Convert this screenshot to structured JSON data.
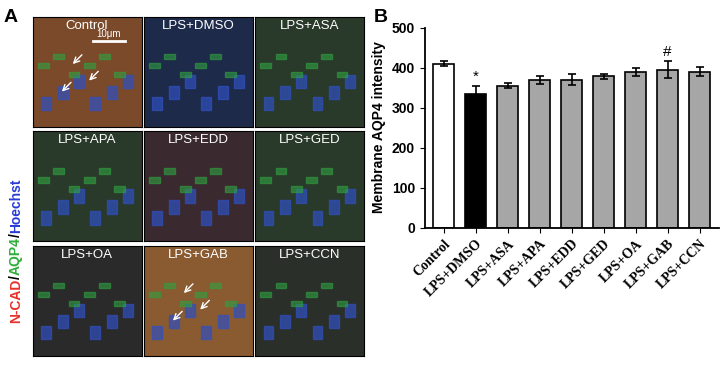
{
  "figure": {
    "panel_labels": [
      "A",
      "B"
    ]
  },
  "image_panel": {
    "tiles": [
      "Control",
      "LPS+DMSO",
      "LPS+ASA",
      "LPS+APA",
      "LPS+EDD",
      "LPS+GED",
      "LPS+OA",
      "LPS+GAB",
      "LPS+CCN"
    ],
    "channel_label": [
      {
        "text": "N-CAD",
        "color": "#e8302a"
      },
      {
        "text": "/",
        "color": "#000000"
      },
      {
        "text": "AQP4",
        "color": "#2fae3a"
      },
      {
        "text": "/",
        "color": "#000000"
      },
      {
        "text": "Hoechst",
        "color": "#2a3bd6"
      }
    ],
    "scale_bar": "10μm"
  },
  "chart_data": {
    "type": "bar",
    "y_label": "Membrane AQP4 intensity",
    "categories": [
      "Control",
      "LPS+DMSO",
      "LPS+ASA",
      "LPS+APA",
      "LPS+EDD",
      "LPS+GED",
      "LPS+OA",
      "LPS+GAB",
      "LPS+CCN"
    ],
    "values": [
      410,
      335,
      355,
      370,
      370,
      378,
      388,
      395,
      390
    ],
    "errors": [
      7,
      20,
      6,
      10,
      13,
      7,
      10,
      22,
      12
    ],
    "colors": [
      "#ffffff",
      "#000000",
      "#a6a6a6",
      "#a6a6a6",
      "#a6a6a6",
      "#a6a6a6",
      "#a6a6a6",
      "#a6a6a6",
      "#a6a6a6"
    ],
    "ylim": [
      0,
      500
    ],
    "yticks": [
      0,
      100,
      200,
      300,
      400,
      500
    ],
    "annotations": [
      {
        "category": "LPS+DMSO",
        "text": "*"
      },
      {
        "category": "LPS+GAB",
        "text": "#"
      }
    ]
  }
}
